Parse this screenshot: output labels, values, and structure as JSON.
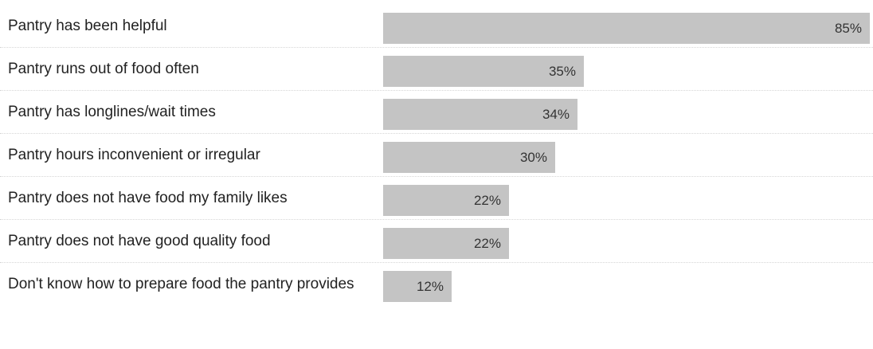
{
  "chart_data": {
    "type": "bar",
    "orientation": "horizontal",
    "categories": [
      "Pantry has been helpful",
      "Pantry runs out of food often",
      "Pantry has longlines/wait times",
      "Pantry hours inconvenient or irregular",
      "Pantry does not have food my family likes",
      "Pantry does not have good quality food",
      "Don't know how to prepare food the pantry provides"
    ],
    "values": [
      85,
      35,
      34,
      30,
      22,
      22,
      12
    ],
    "value_labels": [
      "85%",
      "35%",
      "34%",
      "30%",
      "22%",
      "22%",
      "12%"
    ],
    "unit": "%",
    "xlim": [
      0,
      85
    ],
    "grid": false,
    "legend": "none",
    "colors": {
      "bar": "#c4c4c4",
      "text": "#222222"
    }
  }
}
